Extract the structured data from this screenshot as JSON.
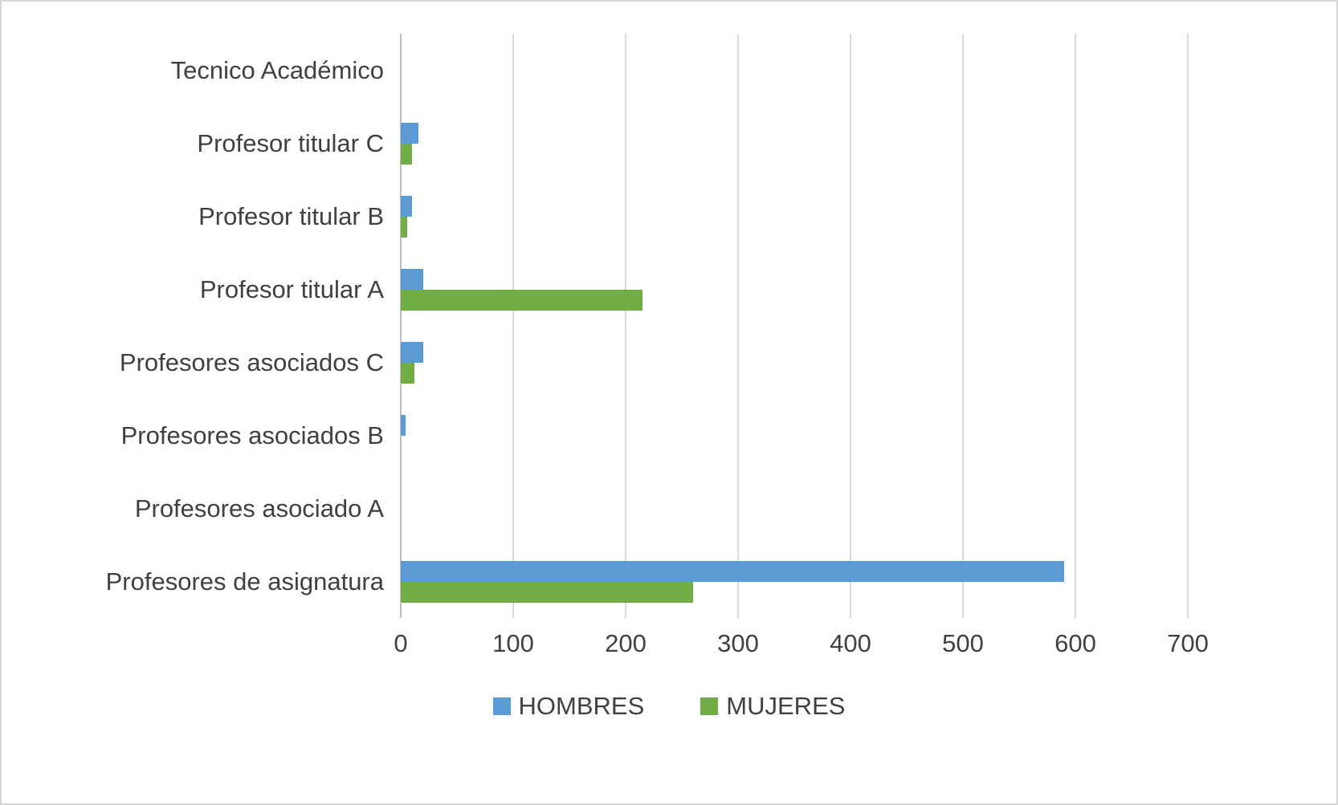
{
  "chart_data": {
    "type": "bar",
    "orientation": "horizontal",
    "title": "",
    "xlabel": "",
    "ylabel": "",
    "xlim": [
      0,
      700
    ],
    "x_ticks": [
      0,
      100,
      200,
      300,
      400,
      500,
      600,
      700
    ],
    "x_tick_labels": [
      "0",
      "100",
      "200",
      "300",
      "400",
      "500",
      "600",
      "700"
    ],
    "grid": true,
    "legend_position": "bottom",
    "categories": [
      "Tecnico Académico",
      "Profesor titular C",
      "Profesor titular B",
      "Profesor titular A",
      "Profesores asociados C",
      "Profesores asociados B",
      "Profesores asociado A",
      "Profesores de asignatura"
    ],
    "series": [
      {
        "name": "HOMBRES",
        "color": "#5B9BD5",
        "values": [
          0,
          16,
          10,
          20,
          20,
          4,
          0,
          590
        ]
      },
      {
        "name": "MUJERES",
        "color": "#70AD47",
        "values": [
          0,
          10,
          6,
          215,
          12,
          0,
          0,
          260
        ]
      }
    ]
  },
  "colors": {
    "gridline": "#d9d9d9",
    "axis_line": "#bfbfbf",
    "text": "#404040",
    "background": "#ffffff"
  }
}
